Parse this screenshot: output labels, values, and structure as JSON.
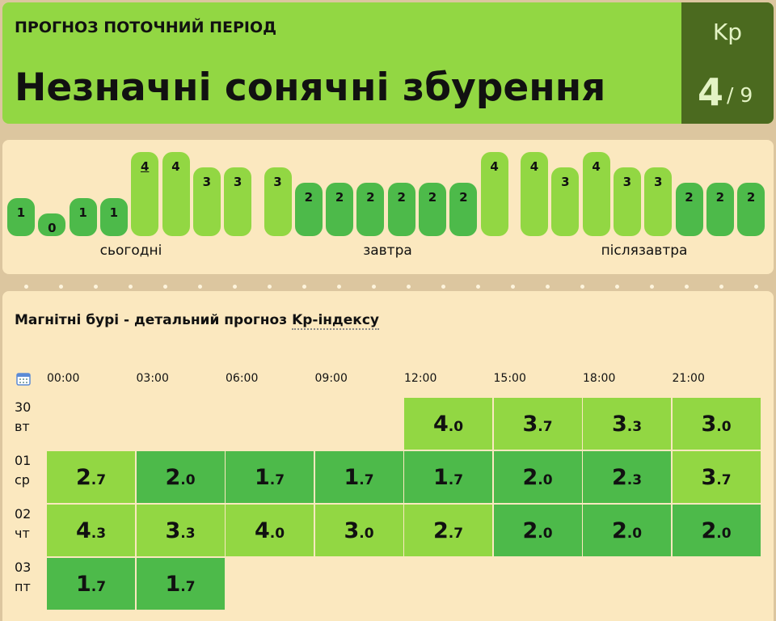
{
  "header": {
    "label": "ПРОГНОЗ ПОТОЧНИЙ ПЕРІОД",
    "title": "Незначні сонячні збурення",
    "kp_label": "Kp",
    "kp_value": 4,
    "kp_scale": "/ 9"
  },
  "forecast_bars": {
    "current": {
      "group": 0,
      "bar": 4
    },
    "groups": [
      {
        "label": "сьогодні",
        "values": [
          1,
          0,
          1,
          1,
          4,
          4,
          3,
          3
        ]
      },
      {
        "label": "завтра",
        "values": [
          3,
          2,
          2,
          2,
          2,
          2,
          2,
          4
        ]
      },
      {
        "label": "післязавтра",
        "values": [
          4,
          3,
          4,
          3,
          3,
          2,
          2,
          2
        ]
      }
    ]
  },
  "table": {
    "title": "Магнітні бурі - детальний прогноз",
    "link": "Kp-індексу",
    "hours": [
      "00:00",
      "03:00",
      "06:00",
      "09:00",
      "12:00",
      "15:00",
      "18:00",
      "21:00"
    ],
    "rows": [
      {
        "day": "30",
        "weekday": "вт",
        "values": [
          null,
          null,
          null,
          null,
          "4.0",
          "3.7",
          "3.3",
          "3.0"
        ]
      },
      {
        "day": "01",
        "weekday": "ср",
        "values": [
          "2.7",
          "2.0",
          "1.7",
          "1.7",
          "1.7",
          "2.0",
          "2.3",
          "3.7"
        ]
      },
      {
        "day": "02",
        "weekday": "чт",
        "values": [
          "4.3",
          "3.3",
          "4.0",
          "3.0",
          "2.7",
          "2.0",
          "2.0",
          "2.0"
        ]
      },
      {
        "day": "03",
        "weekday": "пт",
        "values": [
          "1.7",
          "1.7",
          null,
          null,
          null,
          null,
          null,
          null
        ]
      }
    ]
  }
}
